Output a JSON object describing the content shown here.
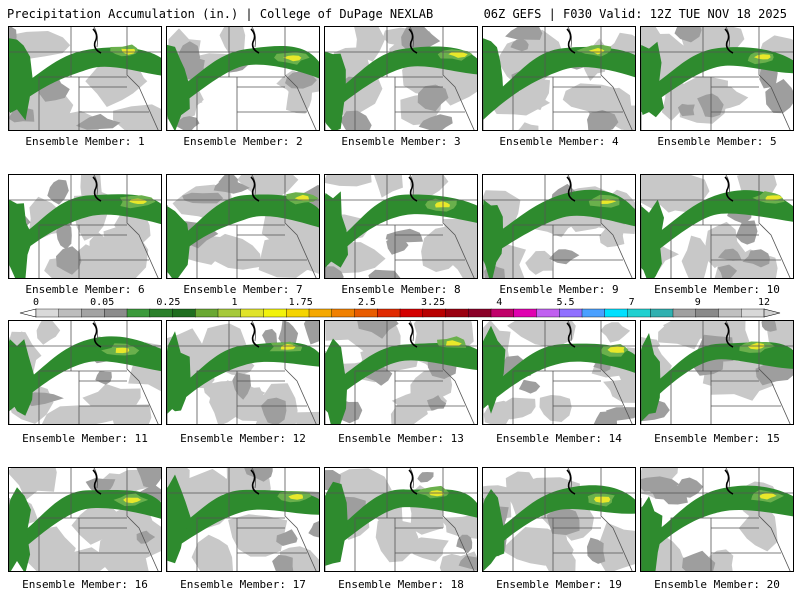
{
  "header": {
    "left_title": "Precipitation Accumulation (in.) | College of DuPage NEXLAB",
    "right_title": "06Z GEFS | F030 Valid: 12Z TUE NOV 18 2025"
  },
  "legend": {
    "labels": [
      "0",
      "0.05",
      "0.25",
      "1",
      "1.75",
      "2.5",
      "3.25",
      "4",
      "5.5",
      "7",
      "9",
      "12"
    ],
    "colors": [
      "#d9d9d9",
      "#bdbdbd",
      "#a3a3a3",
      "#8c8c8c",
      "#3c9a3c",
      "#2a7f2a",
      "#1f6e1f",
      "#6aa832",
      "#a6c93a",
      "#e0e32a",
      "#f2f20a",
      "#f5d400",
      "#f5a800",
      "#f08000",
      "#e85c00",
      "#e02a00",
      "#d40000",
      "#b80000",
      "#9a0010",
      "#8a0028",
      "#c0006a",
      "#e000b0",
      "#c060f0",
      "#9070ff",
      "#4aa0ff",
      "#00e0ff",
      "#20d0d0",
      "#30b0b0",
      "#a0a0a0",
      "#8a8a8a",
      "#c0c0c0",
      "#d8d8d8"
    ]
  },
  "members": [
    {
      "label": "Ensemble Member: 1"
    },
    {
      "label": "Ensemble Member: 2"
    },
    {
      "label": "Ensemble Member: 3"
    },
    {
      "label": "Ensemble Member: 4"
    },
    {
      "label": "Ensemble Member: 5"
    },
    {
      "label": "Ensemble Member: 6"
    },
    {
      "label": "Ensemble Member: 7"
    },
    {
      "label": "Ensemble Member: 8"
    },
    {
      "label": "Ensemble Member: 9"
    },
    {
      "label": "Ensemble Member: 10"
    },
    {
      "label": "Ensemble Member: 11"
    },
    {
      "label": "Ensemble Member: 12"
    },
    {
      "label": "Ensemble Member: 13"
    },
    {
      "label": "Ensemble Member: 14"
    },
    {
      "label": "Ensemble Member: 15"
    },
    {
      "label": "Ensemble Member: 16"
    },
    {
      "label": "Ensemble Member: 17"
    },
    {
      "label": "Ensemble Member: 18"
    },
    {
      "label": "Ensemble Member: 19"
    },
    {
      "label": "Ensemble Member: 20"
    }
  ],
  "colors": {
    "light_precip": "#c8c8c8",
    "mid_precip": "#9e9e9e",
    "green": "#2e8b2e",
    "light_green": "#6ab04c",
    "yellow": "#e8e82a",
    "border": "#000000",
    "state_line": "#555555"
  }
}
